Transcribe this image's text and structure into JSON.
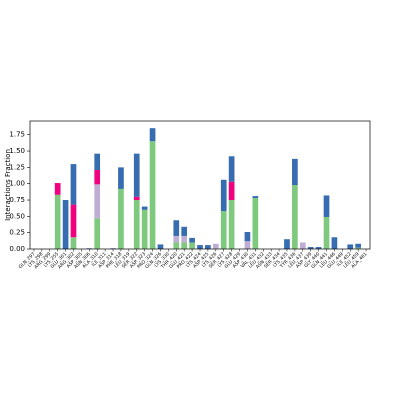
{
  "chart_data": {
    "type": "stacked_bar",
    "ylabel": "Interactions Fraction",
    "categories": [
      "GLN_297",
      "LYS_298",
      "ARG_299",
      "LYS_255",
      "GLU_301",
      "ARG_302",
      "ASP_305",
      "ASN_306",
      "ALA_310",
      "ILE_311",
      "ASP_314",
      "PHE_318",
      "LEU_319",
      "SER_322",
      "ASP_323",
      "PRO_324",
      "GLN_326",
      "LYS_330",
      "THR_420",
      "GLU_421",
      "PRO_422",
      "LYS_424",
      "ASP_425",
      "LYS_426",
      "SER_427",
      "LYS_428",
      "GLU_429",
      "ASP_430",
      "VAL_431",
      "LEU_432",
      "ASN_433",
      "SER_434",
      "LYS_435",
      "TYR_436",
      "LEU_437",
      "ASP_439",
      "GLY_440",
      "GLN_441",
      "LEU_446",
      "GLU_449",
      "ILE_452",
      "LEU_459",
      "ALA_461"
    ],
    "series": [
      {
        "color": "#7fc97f",
        "values": [
          0,
          0,
          0,
          0.83,
          0,
          0.18,
          0,
          0,
          0.47,
          0,
          0,
          0.92,
          0,
          0.75,
          0.6,
          1.65,
          0,
          0,
          0.1,
          0.1,
          0.1,
          0,
          0,
          0,
          0.58,
          0.75,
          0,
          0,
          0.78,
          0,
          0,
          0,
          0,
          0.98,
          0,
          0,
          0,
          0.49,
          0,
          0,
          0,
          0.02,
          0
        ]
      },
      {
        "color": "#beaed4",
        "values": [
          0,
          0,
          0,
          0,
          0,
          0,
          0,
          0,
          0.52,
          0,
          0,
          0,
          0,
          0,
          0,
          0,
          0,
          0,
          0.1,
          0.1,
          0,
          0,
          0,
          0.08,
          0,
          0,
          0,
          0.12,
          0,
          0,
          0,
          0,
          0,
          0,
          0.1,
          0,
          0,
          0,
          0,
          0,
          0,
          0,
          0
        ]
      },
      {
        "color": "#f0027f",
        "values": [
          0,
          0,
          0,
          0.18,
          0,
          0.5,
          0,
          0,
          0.22,
          0,
          0,
          0,
          0,
          0.05,
          0,
          0,
          0,
          0,
          0,
          0,
          0,
          0,
          0,
          0,
          0,
          0.28,
          0,
          0,
          0,
          0,
          0,
          0,
          0,
          0,
          0,
          0,
          0,
          0,
          0,
          0,
          0,
          0,
          0
        ]
      },
      {
        "color": "#386cb0",
        "values": [
          0,
          0,
          0,
          0,
          0.75,
          0.62,
          0,
          0.01,
          0.25,
          0,
          0.01,
          0.33,
          0,
          0.66,
          0.05,
          0.2,
          0.07,
          0,
          0.24,
          0.14,
          0.07,
          0.06,
          0.06,
          0,
          0.48,
          0.39,
          0,
          0.14,
          0.03,
          0,
          0,
          0,
          0.15,
          0.4,
          0,
          0.03,
          0.03,
          0.33,
          0.18,
          0,
          0.07,
          0.06,
          0
        ]
      }
    ],
    "ylim": [
      0,
      1.96
    ],
    "yticks": [
      {
        "value": 0,
        "label": "0.00"
      },
      0.25,
      {
        "value": 0.5,
        "label": "0.50"
      },
      0.75,
      {
        "value": 1,
        "label": "1.00"
      },
      1.25,
      {
        "value": 1.5,
        "label": "1.50"
      },
      1.75
    ]
  }
}
